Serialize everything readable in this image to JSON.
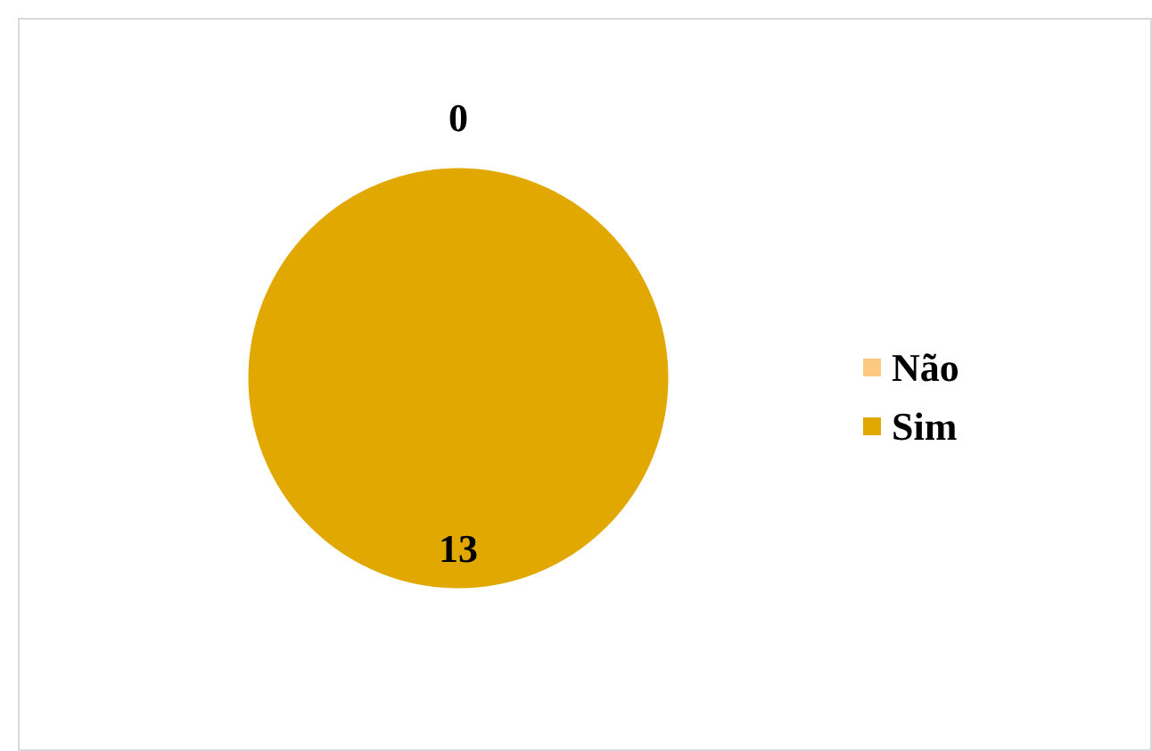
{
  "chart_data": {
    "type": "pie",
    "categories": [
      "Não",
      "Sim"
    ],
    "values": [
      0,
      13
    ],
    "colors": [
      "#fdc97f",
      "#e0a800"
    ],
    "value_labels": [
      "0",
      "13"
    ],
    "legend": "right"
  }
}
